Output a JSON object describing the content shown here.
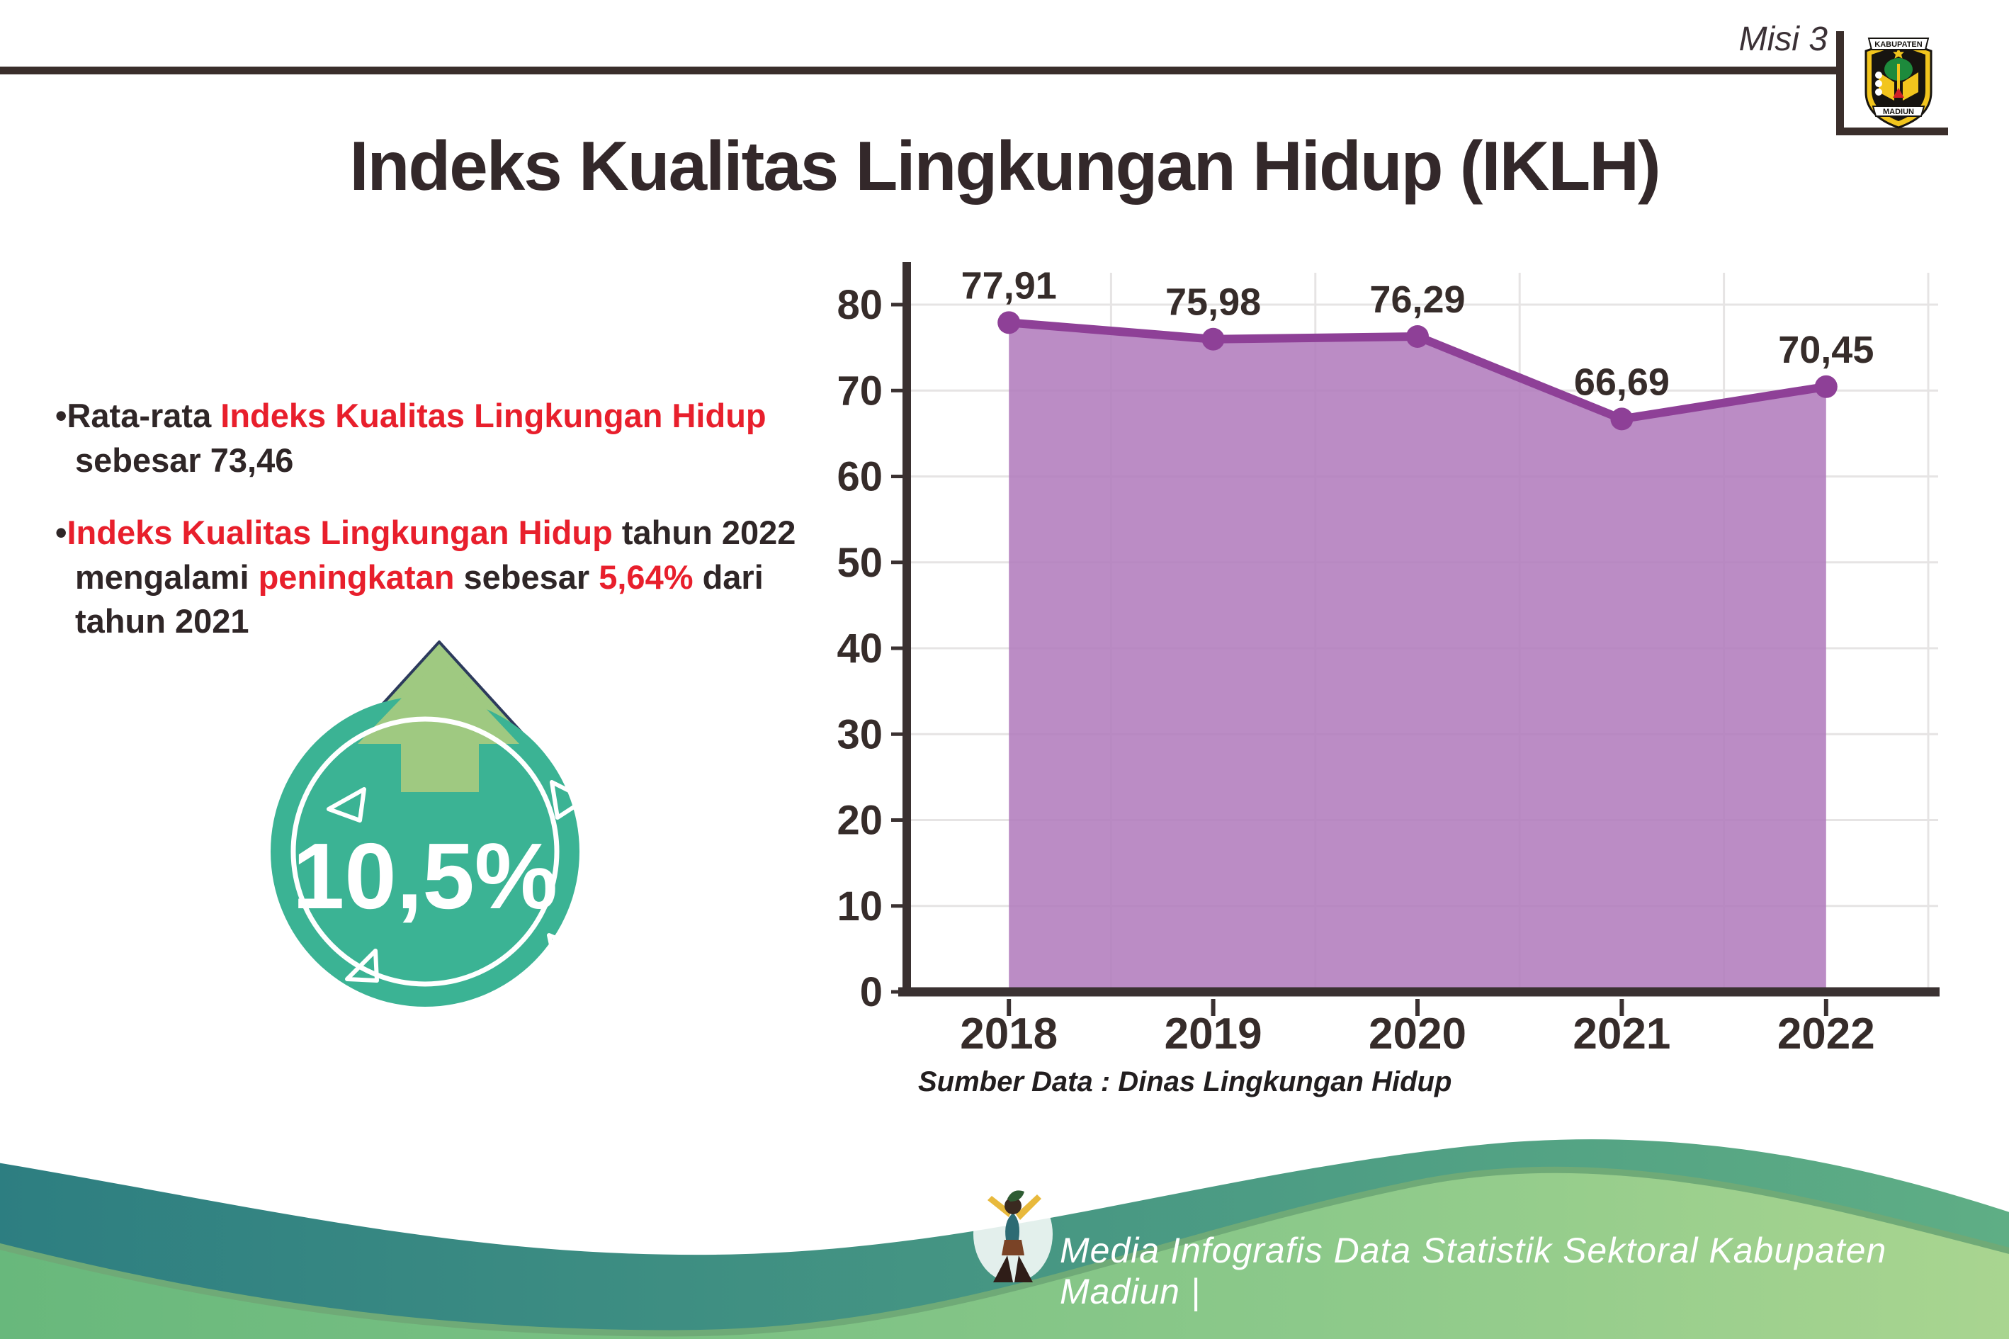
{
  "header": {
    "misi": "Misi 3",
    "title": "Indeks Kualitas Lingkungan Hidup (IKLH)",
    "logo": {
      "top_banner": "KABUPATEN",
      "bottom_banner": "MADIUN"
    }
  },
  "bullets": [
    {
      "segments": [
        {
          "t": "Rata-rata ",
          "c": "dark"
        },
        {
          "t": "Indeks Kualitas Lingkungan Hidup",
          "c": "red"
        },
        {
          "t": " sebesar 73,46",
          "c": "dark"
        }
      ]
    },
    {
      "segments": [
        {
          "t": "Indeks Kualitas Lingkungan Hidup",
          "c": "red"
        },
        {
          "t": " tahun 2022 mengalami ",
          "c": "dark"
        },
        {
          "t": "peningkatan",
          "c": "red"
        },
        {
          "t": " sebesar ",
          "c": "dark"
        },
        {
          "t": "5,64%",
          "c": "red"
        },
        {
          "t": " dari tahun 2021",
          "c": "dark"
        }
      ]
    }
  ],
  "badge": {
    "value": "10,5%",
    "icon": "up-arrow-icon"
  },
  "chart_data": {
    "type": "area",
    "title": "Indeks Kualitas Lingkungan Hidup (IKLH)",
    "categories": [
      "2018",
      "2019",
      "2020",
      "2021",
      "2022"
    ],
    "series": [
      {
        "name": "IKLH",
        "values": [
          77.91,
          75.98,
          76.29,
          66.69,
          70.45
        ]
      }
    ],
    "value_labels": [
      "77,91",
      "75,98",
      "76,29",
      "66,69",
      "70,45"
    ],
    "ylim": [
      0,
      80
    ],
    "ytick_step": 10,
    "grid": true,
    "legend": "none",
    "source_note": "Sumber Data : Dinas Lingkungan Hidup"
  },
  "footer": {
    "credit": "Media Infografis Data Statistik Sektoral Kabupaten Madiun |"
  },
  "colors": {
    "dark": "#362c2a",
    "red": "#e81f2c",
    "purple_line": "#8e4097",
    "purple_fill": "#b27cbd",
    "grid": "#e6e4e4",
    "axis": "#3a3131",
    "teal_badge": "#3bb394",
    "arrow_green": "#9fc981",
    "arrow_outline": "#2c3a5c",
    "footer_teal_from": "#2d7e81",
    "footer_teal_to": "#5fae85",
    "footer_green_from": "#68b87c",
    "footer_green_to": "#a9d590"
  }
}
